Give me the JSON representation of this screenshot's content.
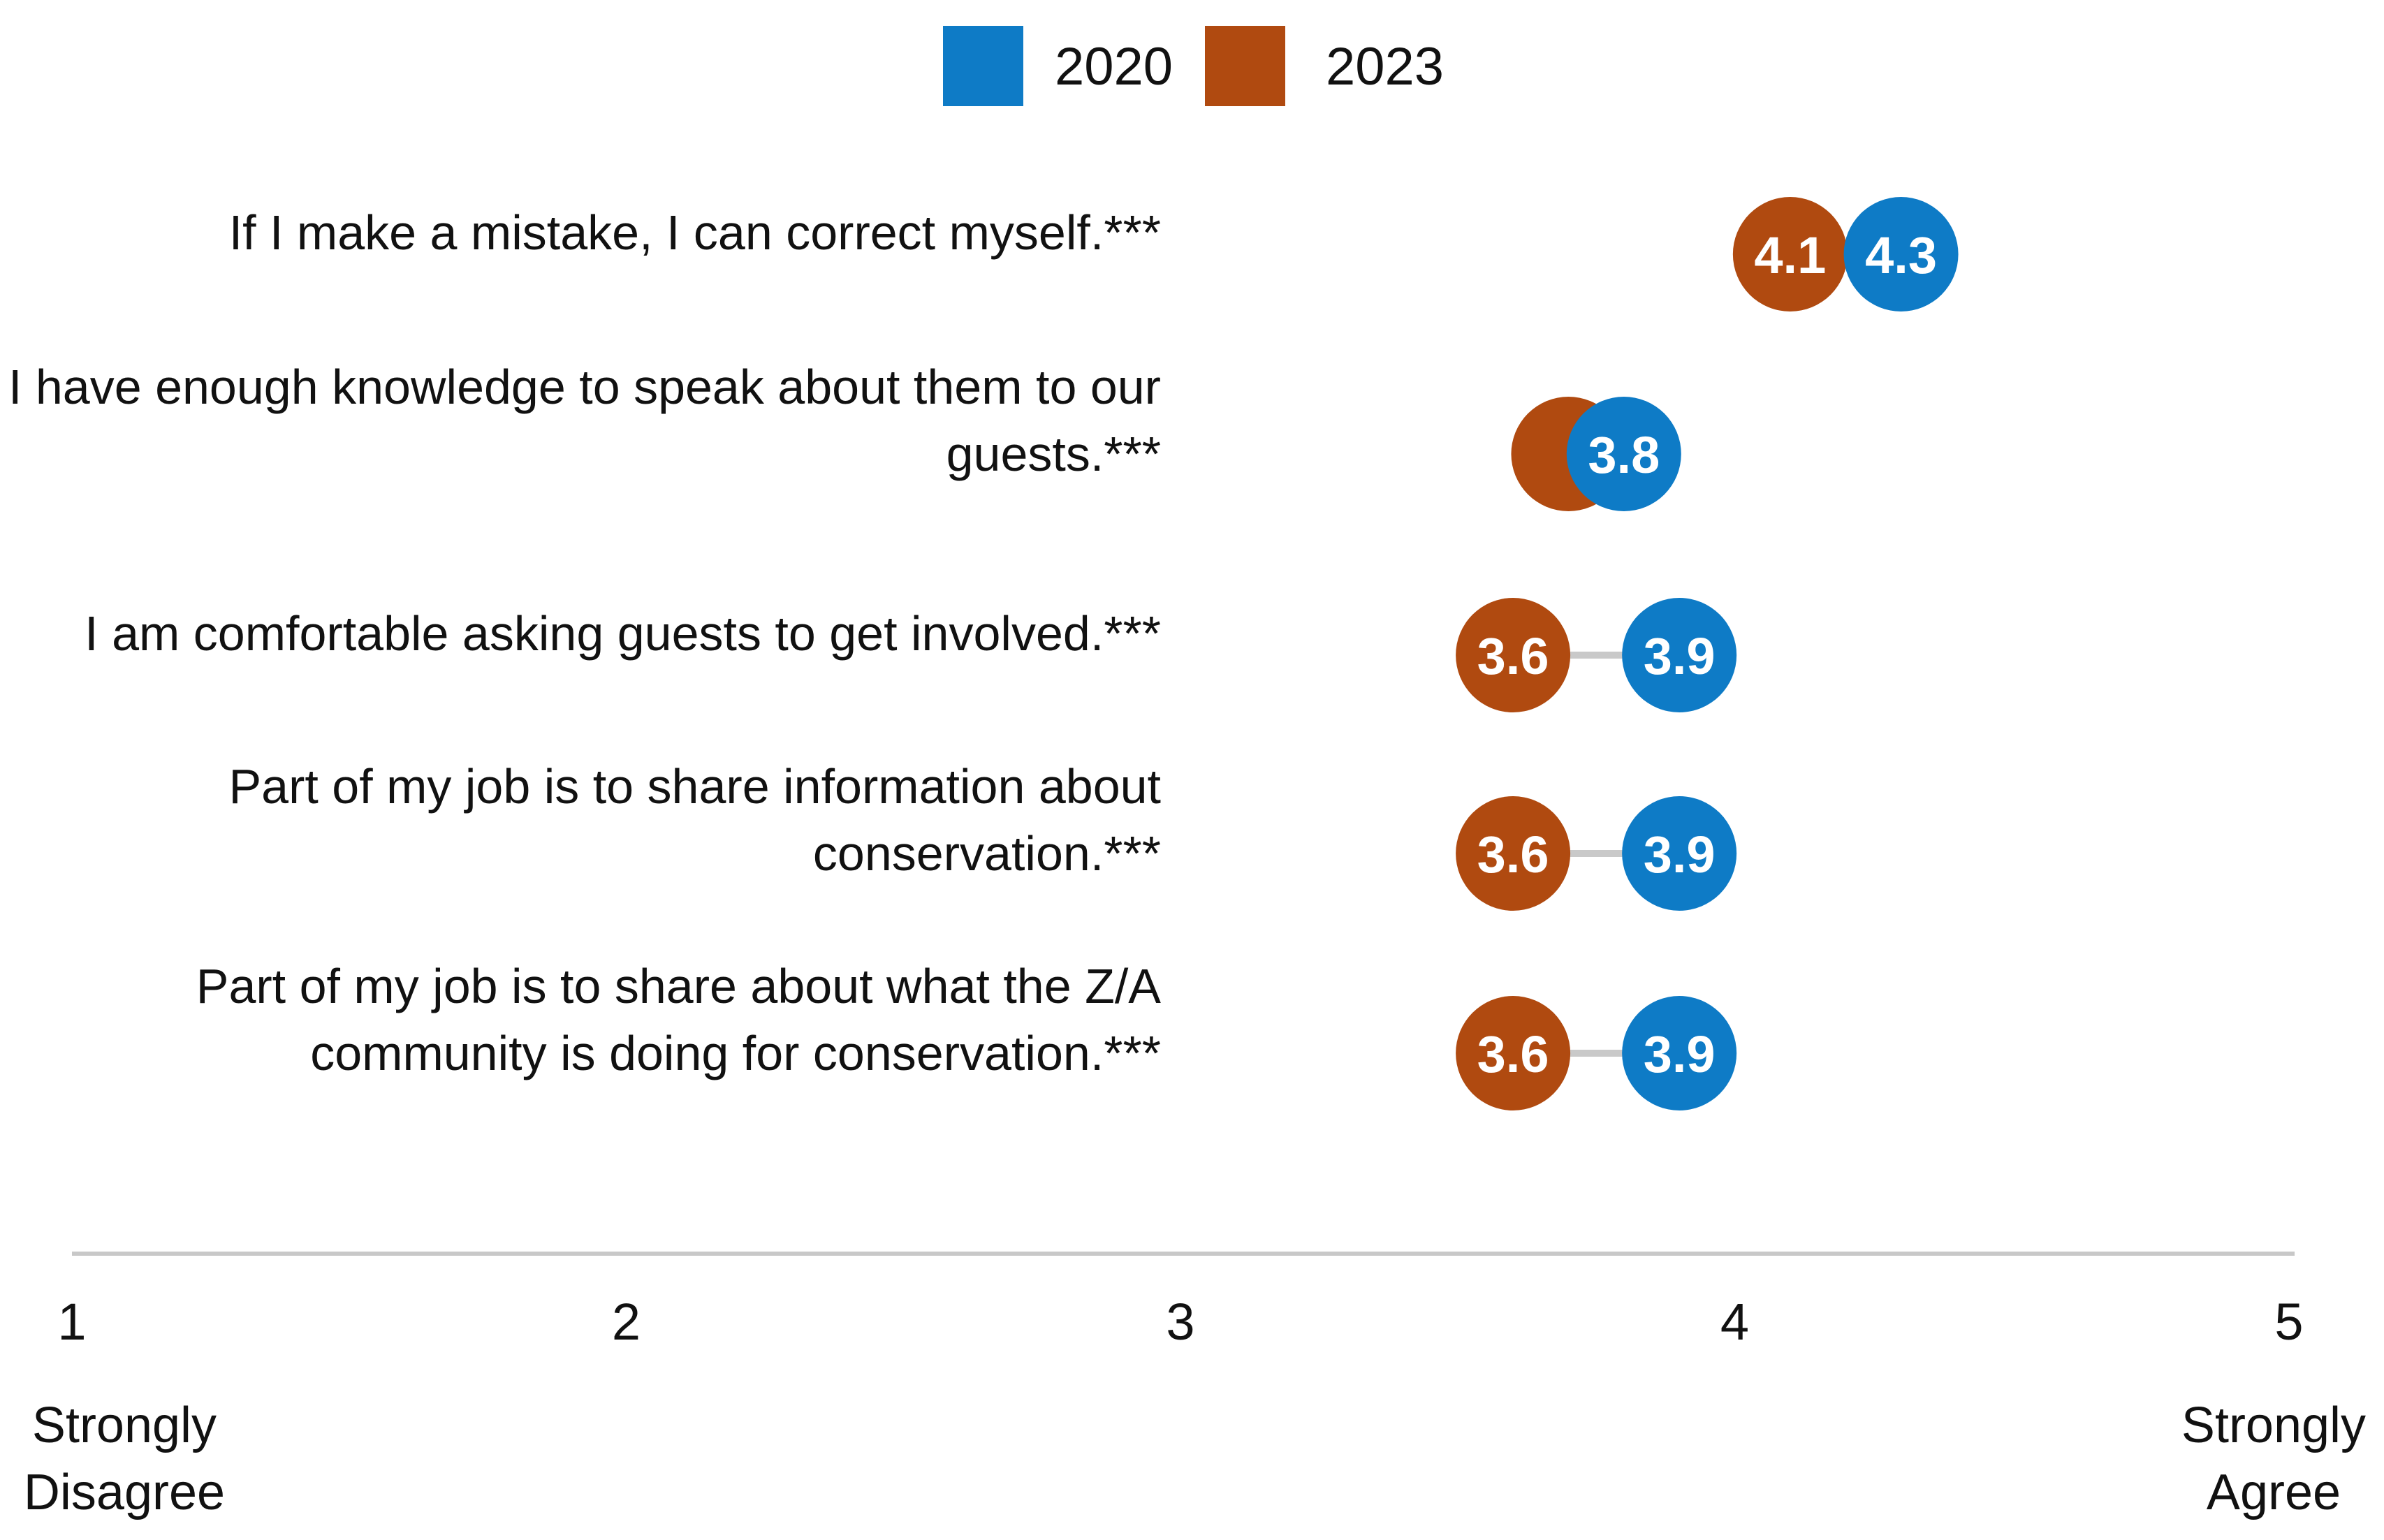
{
  "chart_data": {
    "type": "scatter",
    "subtype": "dumbbell",
    "title": "",
    "xlabel": "",
    "ylabel": "",
    "xlim": [
      1,
      5
    ],
    "ticks": [
      1,
      2,
      3,
      4,
      5
    ],
    "tick_labels": [
      "1",
      "2",
      "3",
      "4",
      "5"
    ],
    "scale_anchors": {
      "low": [
        "Strongly",
        "Disagree"
      ],
      "high": [
        "Strongly",
        "Agree"
      ]
    },
    "legend": {
      "position": "top-center",
      "entries": [
        {
          "name": "2020",
          "color": "#0E7BC6"
        },
        {
          "name": "2023",
          "color": "#B04A10"
        }
      ]
    },
    "categories": [
      [
        "If I make a mistake, I can correct myself.***"
      ],
      [
        "I have enough knowledge to speak about them to our",
        "guests.***"
      ],
      [
        "I am comfortable asking guests to get involved.***"
      ],
      [
        "Part of my job is to share information about",
        "conservation.***"
      ],
      [
        "Part of my job is to share about what the Z/A",
        "community is doing for conservation.***"
      ]
    ],
    "series": [
      {
        "name": "2020",
        "color": "#0E7BC6",
        "values": [
          4.3,
          3.8,
          3.9,
          3.9,
          3.9
        ],
        "labels": [
          "4.3",
          "3.8",
          "3.9",
          "3.9",
          "3.9"
        ]
      },
      {
        "name": "2023",
        "color": "#B04A10",
        "values": [
          4.1,
          3.7,
          3.6,
          3.6,
          3.6
        ],
        "labels": [
          "4.1",
          "",
          "3.6",
          "3.6",
          "3.6"
        ]
      }
    ],
    "connector_color": "#C9C9C9",
    "axis_line_color": "#C8C8C8",
    "grid": false
  }
}
